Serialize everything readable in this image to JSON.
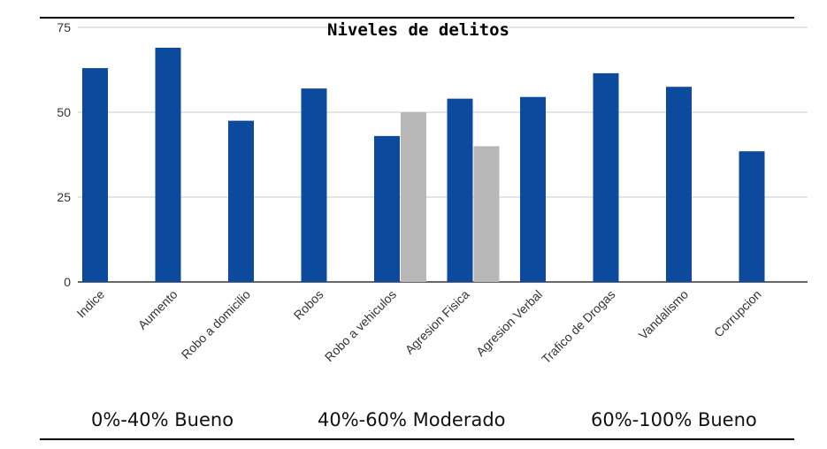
{
  "chart_data": {
    "type": "bar",
    "title": "Niveles de delitos",
    "categories": [
      "Indice",
      "Aumento",
      "Robo a domicilio",
      "Robos",
      "Robo a vehiculos",
      "Agresion Fisica",
      "Agresion Verbal",
      "Trafico de Drogas",
      "Vandalismo",
      "Corrupcion"
    ],
    "series": [
      {
        "values": [
          63,
          69,
          47.5,
          57,
          43,
          54,
          54.5,
          61.5,
          57.5,
          38.5
        ],
        "color": "#0b4a9c"
      },
      {
        "values": [
          null,
          null,
          null,
          null,
          50,
          40,
          null,
          null,
          null,
          null
        ],
        "color": "#b7b7b7"
      }
    ],
    "ylim": [
      0,
      75
    ],
    "yticks": [
      "0",
      "25",
      "50",
      "75"
    ],
    "grid": true,
    "xlabel": "",
    "ylabel": ""
  },
  "legend_text": {
    "low": "0%-40% Bueno",
    "mid": "40%-60% Moderado",
    "high": "60%-100% Bueno"
  }
}
